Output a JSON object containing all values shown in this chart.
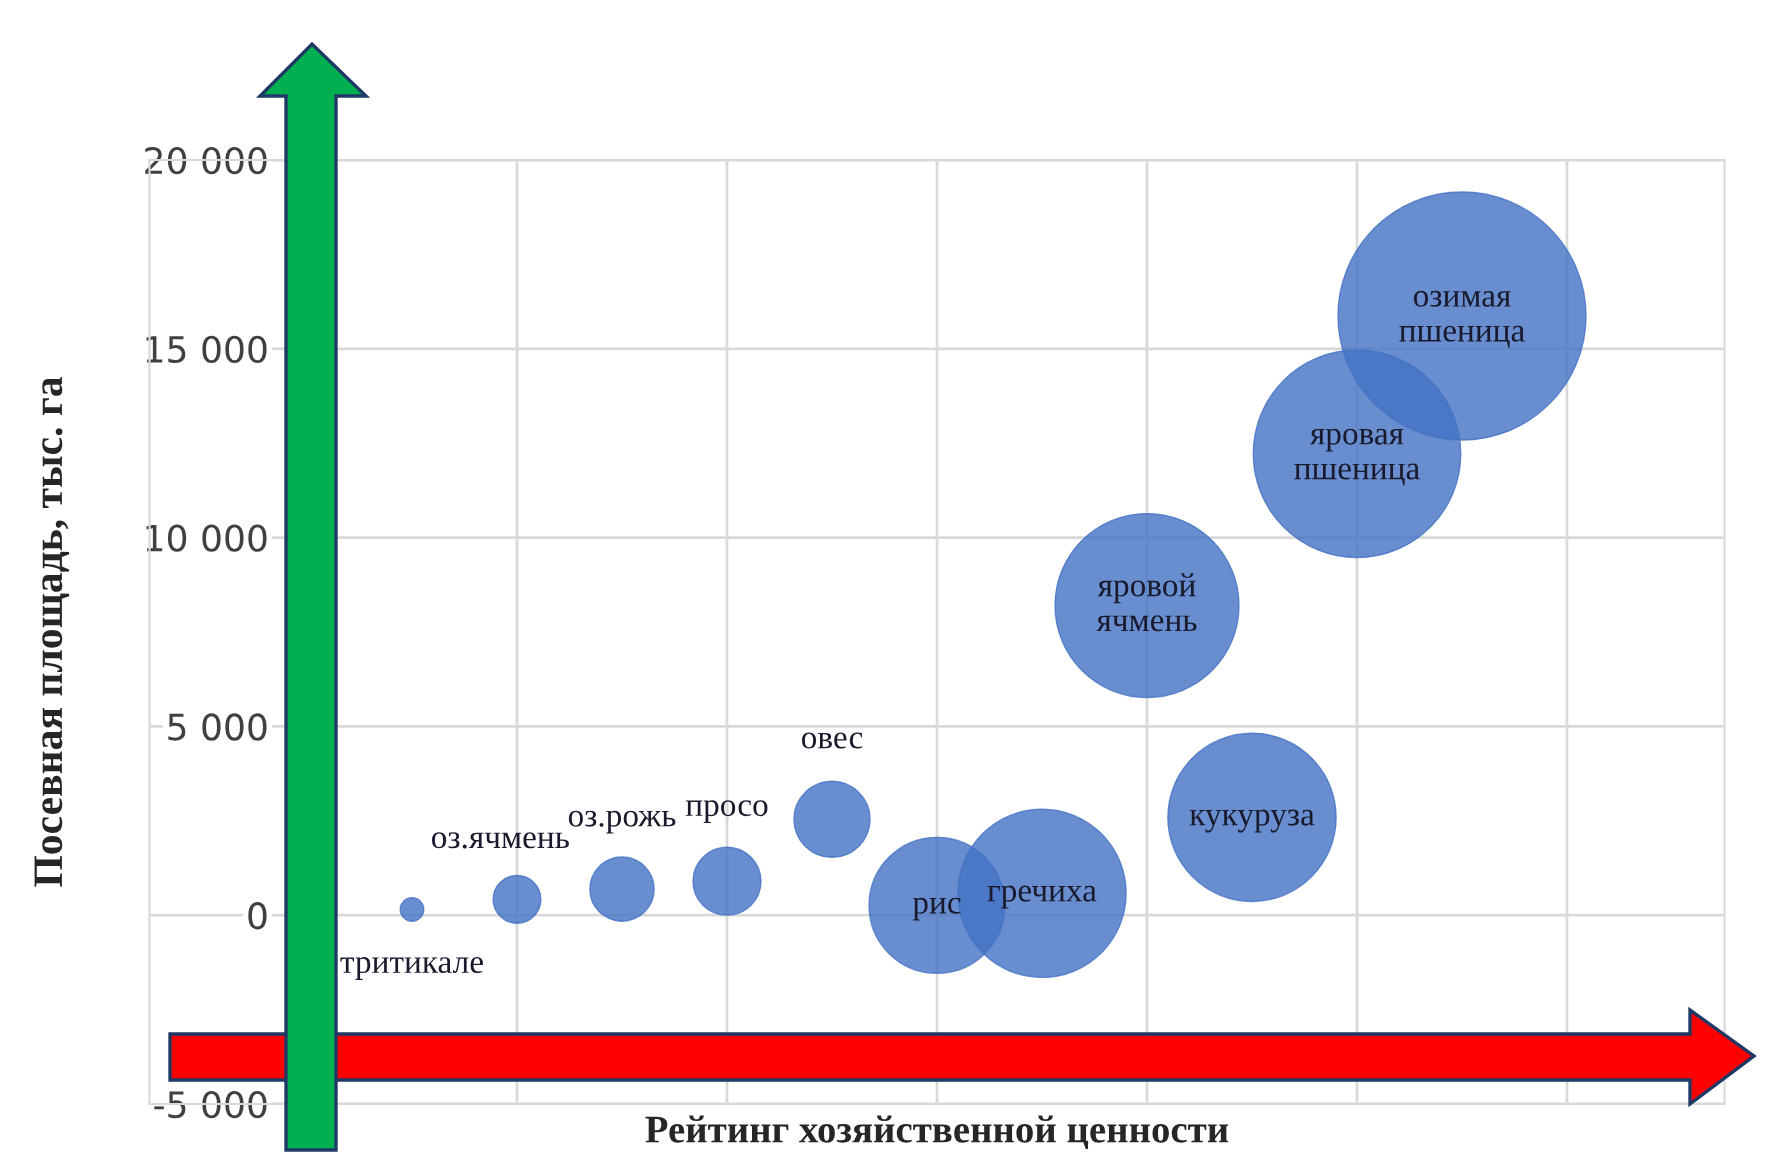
{
  "chart_data": {
    "type": "bubble",
    "xlabel": "Рейтинг хозяйственной ценности",
    "ylabel": "Посевная площадь, тыс. га",
    "categories": [
      null,
      null,
      null,
      null,
      null,
      null,
      null,
      null,
      null,
      null,
      null,
      null,
      null,
      null,
      null
    ],
    "series": [
      {
        "name": "тритикале",
        "color": "#4472c4",
        "values": [
          null,
          null,
          150,
          null,
          null,
          null,
          null,
          null,
          null,
          null,
          null,
          null,
          null,
          null,
          null
        ],
        "sizes": [
          null,
          null,
          0.009,
          null,
          null,
          null,
          null,
          null,
          null,
          null,
          null,
          null,
          null,
          null,
          null
        ]
      },
      {
        "name": "оз.ячмень",
        "color": "#4472c4",
        "values": [
          null,
          null,
          null,
          420,
          null,
          null,
          null,
          null,
          null,
          null,
          null,
          null,
          null,
          null,
          null
        ],
        "sizes": [
          null,
          null,
          null,
          0.037,
          null,
          null,
          null,
          null,
          null,
          null,
          null,
          null,
          null,
          null,
          null
        ]
      },
      {
        "name": "оз.рожь",
        "color": "#4472c4",
        "values": [
          null,
          null,
          null,
          null,
          690,
          null,
          null,
          null,
          null,
          null,
          null,
          null,
          null,
          null,
          null
        ],
        "sizes": [
          null,
          null,
          null,
          null,
          0.067,
          null,
          null,
          null,
          null,
          null,
          null,
          null,
          null,
          null,
          null
        ]
      },
      {
        "name": "просо",
        "color": "#4472c4",
        "values": [
          null,
          null,
          null,
          null,
          null,
          900,
          null,
          null,
          null,
          null,
          null,
          null,
          null,
          null,
          null
        ],
        "sizes": [
          null,
          null,
          null,
          null,
          null,
          0.075,
          null,
          null,
          null,
          null,
          null,
          null,
          null,
          null,
          null
        ]
      },
      {
        "name": "овес",
        "color": "#4472c4",
        "values": [
          null,
          null,
          null,
          null,
          null,
          null,
          2540,
          null,
          null,
          null,
          null,
          null,
          null,
          null,
          null
        ],
        "sizes": [
          null,
          null,
          null,
          null,
          null,
          null,
          0.094,
          null,
          null,
          null,
          null,
          null,
          null,
          null,
          null
        ]
      },
      {
        "name": "рис",
        "color": "#4472c4",
        "values": [
          null,
          null,
          null,
          null,
          null,
          null,
          null,
          260,
          null,
          null,
          null,
          null,
          null,
          null,
          null
        ],
        "sizes": [
          null,
          null,
          null,
          null,
          null,
          null,
          null,
          0.3,
          null,
          null,
          null,
          null,
          null,
          null,
          null
        ]
      },
      {
        "name": "гречиха",
        "color": "#4472c4",
        "values": [
          null,
          null,
          null,
          null,
          null,
          null,
          null,
          null,
          580,
          null,
          null,
          null,
          null,
          null,
          null
        ],
        "sizes": [
          null,
          null,
          null,
          null,
          null,
          null,
          null,
          null,
          0.46,
          null,
          null,
          null,
          null,
          null,
          null
        ]
      },
      {
        "name": "яровой\nячмень",
        "color": "#4472c4",
        "values": [
          null,
          null,
          null,
          null,
          null,
          null,
          null,
          null,
          null,
          8200,
          null,
          null,
          null,
          null,
          null
        ],
        "sizes": [
          null,
          null,
          null,
          null,
          null,
          null,
          null,
          null,
          null,
          0.55,
          null,
          null,
          null,
          null,
          null
        ]
      },
      {
        "name": "кукуруза",
        "color": "#4472c4",
        "values": [
          null,
          null,
          null,
          null,
          null,
          null,
          null,
          null,
          null,
          null,
          2590,
          null,
          null,
          null,
          null
        ],
        "sizes": [
          null,
          null,
          null,
          null,
          null,
          null,
          null,
          null,
          null,
          null,
          0.46,
          null,
          null,
          null,
          null
        ]
      },
      {
        "name": "яровая\nпшеница",
        "color": "#4472c4",
        "values": [
          null,
          null,
          null,
          null,
          null,
          null,
          null,
          null,
          null,
          null,
          null,
          12220,
          null,
          null,
          null
        ],
        "sizes": [
          null,
          null,
          null,
          null,
          null,
          null,
          null,
          null,
          null,
          null,
          null,
          0.7,
          null,
          null,
          null
        ]
      },
      {
        "name": "озимая\nпшеница",
        "color": "#4472c4",
        "values": [
          null,
          null,
          null,
          null,
          null,
          null,
          null,
          null,
          null,
          null,
          null,
          null,
          15870,
          null,
          null
        ],
        "sizes": [
          null,
          null,
          null,
          null,
          null,
          null,
          null,
          null,
          null,
          null,
          null,
          null,
          1,
          null,
          null
        ]
      }
    ],
    "ylim": [
      -5000,
      20000
    ],
    "yticks": [
      {
        "value": -5000,
        "label": "-5 000"
      },
      {
        "value": 0,
        "label": "0"
      },
      {
        "value": 5000,
        "label": "5 000"
      },
      {
        "value": 10000,
        "label": "10 000"
      },
      {
        "value": 15000,
        "label": "15 000"
      },
      {
        "value": 20000,
        "label": "20 000"
      }
    ],
    "tick_labels": "y",
    "grid": true
  }
}
